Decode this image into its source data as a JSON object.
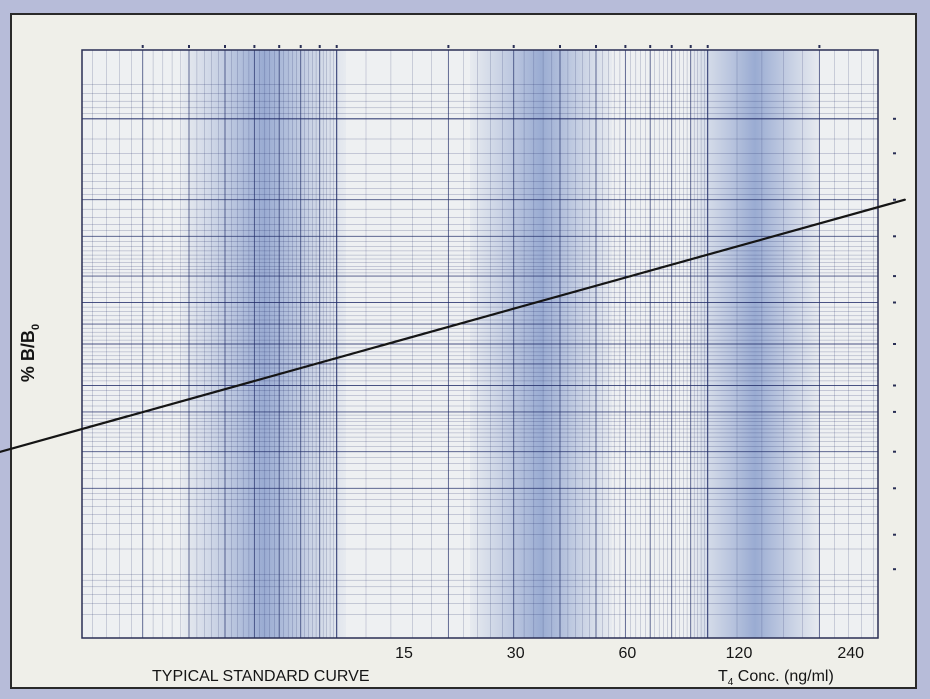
{
  "chart_data": {
    "type": "line",
    "title": "",
    "caption": "TYPICAL STANDARD CURVE",
    "xlabel": {
      "prefix": "T",
      "sub": "4",
      "suffix": " Conc. (ng/ml)"
    },
    "ylabel": {
      "prefix": "% B/B",
      "sub": "0"
    },
    "x_scale": "log",
    "y_scale": "logit",
    "x_ticks": [
      15,
      30,
      60,
      120,
      240
    ],
    "grid": true,
    "series": [
      {
        "x": [
          0.55,
          340
        ],
        "y": [
          95,
          5
        ]
      }
    ]
  },
  "colors": {
    "page_background": "#b7bcd9",
    "paper": "#efefe9",
    "grid_line": "#1f2b66",
    "grid_band": "#6a85c2",
    "curve": "#151515"
  }
}
